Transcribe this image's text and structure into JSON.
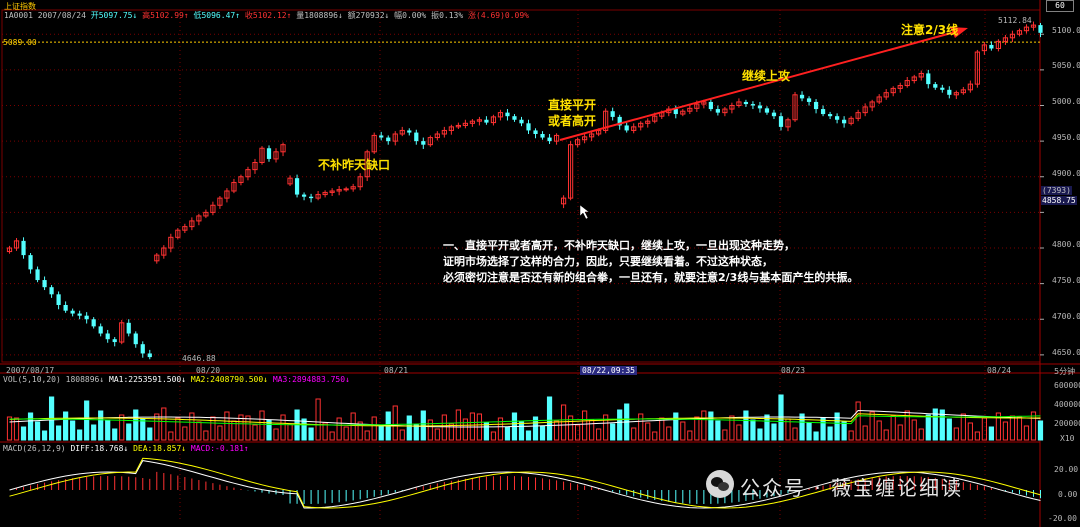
{
  "header": {
    "title": "上证指数",
    "code": "1A0001",
    "date": "2007/08/24",
    "open": "开5097.75",
    "high": "高5102.99",
    "low": "低5096.47",
    "close": "收5102.12",
    "volume": "量1808896",
    "amount": "额270932",
    "change": "幅0.00%",
    "amplitude": "振0.13%",
    "rise": "涨(4.69)0.09%"
  },
  "right_axis": {
    "ticks": [
      "5100.0",
      "5050.0",
      "5000.0",
      "4950.0",
      "4900.0",
      "4850.0",
      "4800.0",
      "4750.0",
      "4700.0",
      "4650.0"
    ],
    "badge_label": "(7393)",
    "badge_value": "4858.75",
    "top_box": "60"
  },
  "price_labels": {
    "left_level": "5089.00",
    "high_label": "5112.84",
    "low_label": "4646.88"
  },
  "time_axis": {
    "labels": [
      "2007/08/17",
      "08/20",
      "08/21",
      "08/22,09:35",
      "08/23",
      "08/24"
    ],
    "right_label": "5分钟"
  },
  "volume_panel": {
    "header": "VOL(5,10,20)",
    "vol": "1808896",
    "ma1": "MA1:2253591.500",
    "ma2": "MA2:2408790.500",
    "ma3": "MA3:2894883.750",
    "ticks": [
      "600000",
      "400000",
      "200000"
    ],
    "unit": "X10"
  },
  "macd_panel": {
    "header": "MACD(26,12,9)",
    "diff": "DIFF:18.768",
    "dea": "DEA:18.857",
    "macd": "MACD:-0.181",
    "ticks": [
      "20.00",
      "0.00",
      "-20.00"
    ]
  },
  "annotations": {
    "note1": "不补昨天缺口",
    "note2_line1": "直接平开",
    "note2_line2": "或者高开",
    "note3": "继续上攻",
    "note4": "注意2/3线",
    "body_line1": "一、直接平开或者高开，不补昨天缺口，继续上攻，一旦出现这种走势，",
    "body_line2": "证明市场选择了这样的合力，因此，只要继续看着。不过这种状态，",
    "body_line3": "必须密切注意是否还有新的组合拳，一旦还有，就要注意2/3线与基本面产生的共振。"
  },
  "watermark": "公众号 · 薇宝缠论细读",
  "colors": {
    "up": "#ff3232",
    "down": "#54ffff",
    "ma_white": "#ffffff",
    "ma_yellow": "#ffff00",
    "ma_magenta": "#ff00ff",
    "ma_green": "#00ff00",
    "grid": "#7a0000",
    "note_yellow": "#ffe100"
  },
  "chart_data": {
    "type": "candlestick",
    "interval": "5分钟",
    "y_range": [
      4640,
      5120
    ],
    "day_labels": [
      "2007/08/17",
      "08/20",
      "08/21",
      "08/22",
      "08/23",
      "08/24"
    ],
    "close_path": [
      4800,
      4810,
      4790,
      4770,
      4755,
      4745,
      4735,
      4720,
      4712,
      4708,
      4705,
      4700,
      4690,
      4680,
      4672,
      4668,
      4695,
      4680,
      4665,
      4652,
      4646.88,
      4790,
      4800,
      4815,
      4825,
      4830,
      4838,
      4845,
      4850,
      4860,
      4870,
      4880,
      4892,
      4900,
      4910,
      4920,
      4940,
      4925,
      4935,
      4945,
      4898,
      4875,
      4872,
      4870,
      4875,
      4878,
      4880,
      4882,
      4883,
      4886,
      4900,
      4935,
      4958,
      4955,
      4950,
      4960,
      4965,
      4962,
      4950,
      4945,
      4955,
      4960,
      4965,
      4970,
      4972,
      4975,
      4978,
      4980,
      4976,
      4984,
      4990,
      4985,
      4980,
      4975,
      4965,
      4960,
      4955,
      4950,
      4958,
      4870,
      4945,
      4952,
      4956,
      4960,
      4965,
      4992,
      4984,
      4972,
      4965,
      4970,
      4975,
      4978,
      4985,
      4990,
      4995,
      4988,
      4992,
      4996,
      5002,
      5005,
      4995,
      4990,
      4995,
      5000,
      5005,
      5002,
      5000,
      4996,
      4990,
      4985,
      4970,
      4980,
      5015,
      5010,
      5005,
      4995,
      4988,
      4985,
      4980,
      4975,
      4982,
      4990,
      4998,
      5005,
      5012,
      5018,
      5024,
      5028,
      5035,
      5040,
      5045,
      5030,
      5025,
      5022,
      5015,
      5018,
      5022,
      5030,
      5075,
      5085,
      5080,
      5090,
      5095,
      5100,
      5105,
      5110,
      5112.84,
      5102
    ]
  }
}
